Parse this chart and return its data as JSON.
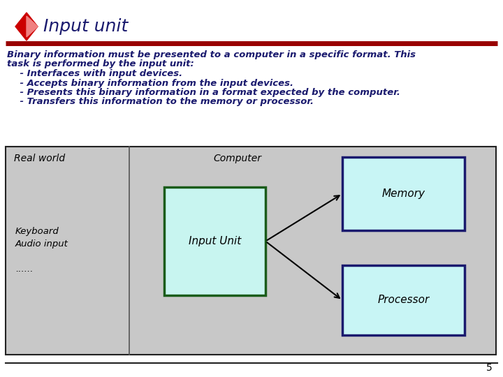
{
  "title": "Input unit",
  "title_color": "#1a1a6e",
  "title_fontsize": 18,
  "diamond_color_outer": "#cc0000",
  "diamond_color_inner": "#f08080",
  "separator_color": "#990000",
  "body_text_color": "#1a1a6e",
  "line1": "Binary information must be presented to a computer in a specific format. This",
  "line2": "task is performed by the input unit:",
  "line3": "    - Interfaces with input devices.",
  "line4": "    - Accepts binary information from the input devices.",
  "line5": "    - Presents this binary information in a format expected by the computer.",
  "line6": "    - Transfers this information to the memory or processor.",
  "body_fontsize": 9.5,
  "diagram_bg": "#c8c8c8",
  "diagram_border": "#222222",
  "divider_color": "#555555",
  "realworld_label": "Real world",
  "computer_label": "Computer",
  "label_fontsize": 10,
  "inputunit_box_bg": "#c8f5f0",
  "inputunit_box_border": "#1a5c1a",
  "inputunit_label": "Input Unit",
  "memory_box_bg": "#c8f5f5",
  "memory_box_border": "#1a1a6e",
  "memory_label": "Memory",
  "processor_box_bg": "#c8f5f5",
  "processor_box_border": "#1a1a6e",
  "processor_label": "Processor",
  "keyboard_text": "Keyboard\nAudio input\n\n......",
  "page_number": "5",
  "bg_color": "#ffffff"
}
